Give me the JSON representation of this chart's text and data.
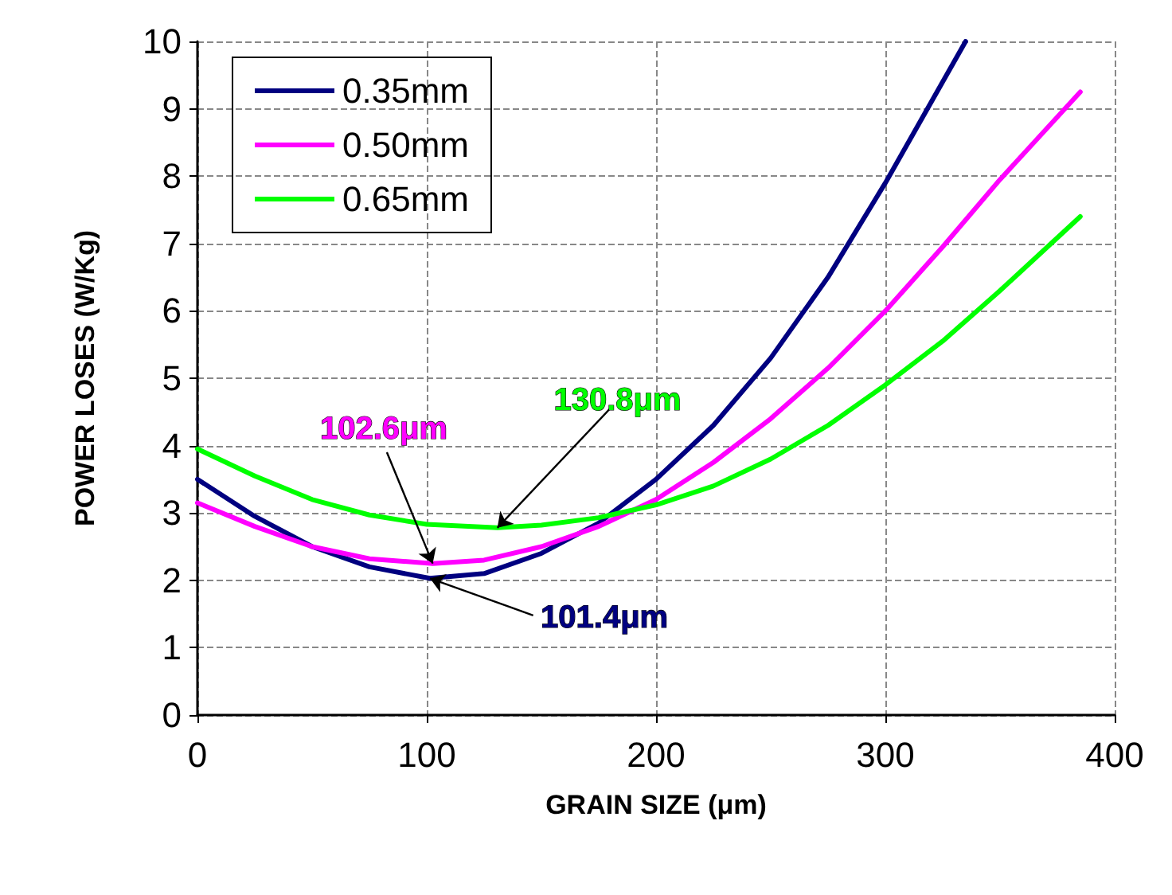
{
  "chart_data": {
    "type": "line",
    "xlabel": "GRAIN SIZE (μm)",
    "ylabel": "POWER LOSES (W/Kg)",
    "xlim": [
      0,
      400
    ],
    "xticks": [
      0,
      100,
      200,
      300,
      400
    ],
    "ylim": [
      0,
      10
    ],
    "yticks": [
      0,
      1,
      2,
      3,
      4,
      5,
      6,
      7,
      8,
      9,
      10
    ],
    "grid": true,
    "legend": "top left",
    "marker": "none",
    "line_style": "solid",
    "series": [
      {
        "name": "0.35mm",
        "color": "#000080",
        "x": [
          0,
          25,
          50,
          75,
          101.4,
          125,
          150,
          175,
          200,
          225,
          250,
          275,
          300,
          325,
          335
        ],
        "values": [
          3.5,
          2.95,
          2.5,
          2.2,
          2.03,
          2.1,
          2.4,
          2.85,
          3.5,
          4.3,
          5.3,
          6.5,
          7.9,
          9.4,
          10
        ]
      },
      {
        "name": "0.50mm",
        "color": "#ff00ff",
        "x": [
          0,
          25,
          50,
          75,
          102.6,
          125,
          150,
          175,
          200,
          225,
          250,
          275,
          300,
          325,
          350,
          385
        ],
        "values": [
          3.15,
          2.8,
          2.5,
          2.32,
          2.25,
          2.3,
          2.5,
          2.8,
          3.2,
          3.75,
          4.4,
          5.15,
          6.0,
          6.95,
          7.95,
          9.25
        ]
      },
      {
        "name": "0.65mm",
        "color": "#00ff00",
        "x": [
          0,
          25,
          50,
          75,
          100,
          130.8,
          150,
          175,
          200,
          225,
          250,
          275,
          300,
          325,
          350,
          385
        ],
        "values": [
          3.95,
          3.55,
          3.2,
          2.97,
          2.83,
          2.78,
          2.82,
          2.93,
          3.12,
          3.4,
          3.8,
          4.3,
          4.9,
          5.55,
          6.3,
          7.4
        ]
      }
    ],
    "annotations": [
      {
        "text": "101.4μm",
        "x": 101.4,
        "y": 2.03
      },
      {
        "text": "102.6μm",
        "x": 102.6,
        "y": 2.25
      },
      {
        "text": "130.8μm",
        "x": 130.8,
        "y": 2.78
      }
    ]
  }
}
